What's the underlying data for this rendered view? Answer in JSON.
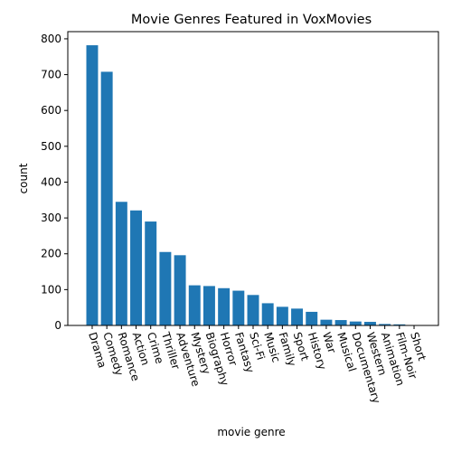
{
  "chart_data": {
    "type": "bar",
    "title": "Movie Genres Featured in VoxMovies",
    "xlabel": "movie genre",
    "ylabel": "count",
    "ylim": [
      0,
      820
    ],
    "yticks": [
      0,
      100,
      200,
      300,
      400,
      500,
      600,
      700,
      800
    ],
    "grid": false,
    "bar_color": "#1f77b4",
    "categories": [
      "Drama",
      "Comedy",
      "Romance",
      "Action",
      "Crime",
      "Thriller",
      "Adventure",
      "Mystery",
      "Biography",
      "Horror",
      "Fantasy",
      "Sci-Fi",
      "Music",
      "Family",
      "Sport",
      "History",
      "War",
      "Musical",
      "Documentary",
      "Western",
      "Animation",
      "Film-Noir",
      "Short"
    ],
    "values": [
      782,
      708,
      345,
      321,
      290,
      205,
      196,
      112,
      110,
      104,
      97,
      85,
      62,
      52,
      47,
      38,
      16,
      15,
      11,
      10,
      4,
      3,
      1
    ]
  }
}
